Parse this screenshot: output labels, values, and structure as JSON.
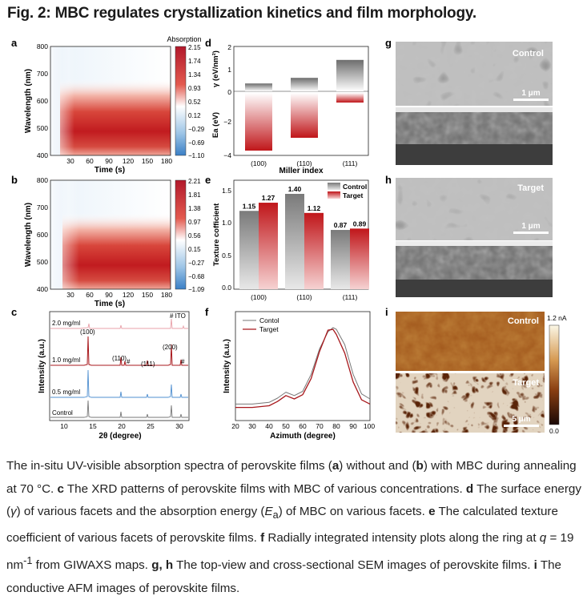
{
  "title": "Fig. 2: MBC regulates crystallization kinetics and film morphology.",
  "panels": {
    "a": {
      "letter": "a",
      "colorbar_title": "Absorption",
      "ylabel": "Wavelength (nm)",
      "xlabel": "Time (s)",
      "yticks": [
        "800",
        "700",
        "600",
        "500",
        "400"
      ],
      "xticks": [
        "30",
        "60",
        "90",
        "120",
        "150",
        "180"
      ],
      "cbar_ticks": [
        "2.15",
        "1.74",
        "1.34",
        "0.93",
        "0.52",
        "0.12",
        "−0.29",
        "−0.69",
        "−1.10"
      ],
      "onset_s": 25
    },
    "b": {
      "letter": "b",
      "ylabel": "Wavelength (nm)",
      "xlabel": "Time (s)",
      "yticks": [
        "800",
        "700",
        "600",
        "500",
        "400"
      ],
      "xticks": [
        "30",
        "60",
        "90",
        "120",
        "150",
        "180"
      ],
      "cbar_ticks": [
        "2.21",
        "1.81",
        "1.38",
        "0.97",
        "0.56",
        "0.15",
        "−0.27",
        "−0.68",
        "−1.09"
      ],
      "onset_s": 35
    },
    "c": {
      "letter": "c",
      "ylabel": "Intensity (a.u.)",
      "xlabel": "2θ (degree)",
      "xticks": [
        "10",
        "15",
        "20",
        "25",
        "30"
      ],
      "traces": [
        "2.0 mg/ml",
        "1.0 mg/ml",
        "0.5 mg/ml",
        "Control"
      ],
      "annotations": [
        "(100)",
        "(110)",
        "#",
        "(111)",
        "(200)",
        "#",
        "# ITO"
      ]
    },
    "d": {
      "letter": "d",
      "ylabel_top": "γ (eV/nm²)",
      "ylabel_bottom": "Ea (eV)",
      "xlabel": "Miller index",
      "yticks": [
        "2",
        "1",
        "0",
        "−2",
        "−4"
      ],
      "categories": [
        "(100)",
        "(110)",
        "(111)"
      ]
    },
    "e": {
      "letter": "e",
      "ylabel": "Texture cofficient",
      "legend": [
        "Control",
        "Target"
      ],
      "yticks": [
        "1.5",
        "1.0",
        "0.5",
        "0.0"
      ],
      "categories": [
        "(100)",
        "(110)",
        "(111)"
      ],
      "labels_control": [
        "1.15",
        "1.40",
        "0.87"
      ],
      "labels_target": [
        "1.27",
        "1.12",
        "0.89"
      ]
    },
    "f": {
      "letter": "f",
      "ylabel": "Intensity (a.u.)",
      "xlabel": "Azimuth (degree)",
      "legend": [
        "Contol",
        "Target"
      ],
      "xticks": [
        "20",
        "30",
        "40",
        "50",
        "60",
        "70",
        "80",
        "90",
        "100"
      ]
    },
    "g": {
      "letter": "g",
      "label": "Control",
      "scale": "1 μm"
    },
    "h": {
      "letter": "h",
      "label": "Target",
      "scale": "1 μm"
    },
    "i": {
      "letter": "i",
      "label_top": "Control",
      "label_bottom": "Target",
      "scale": "5 μm",
      "cbar_max": "1.2 nA",
      "cbar_min": "0.0"
    }
  },
  "chart_data": [
    {
      "panel": "d",
      "type": "bar",
      "categories": [
        "(100)",
        "(110)",
        "(111)"
      ],
      "series": [
        {
          "name": "γ (eV/nm²)",
          "values": [
            0.35,
            0.6,
            1.4
          ]
        },
        {
          "name": "Ea (eV)",
          "values": [
            -3.6,
            -2.8,
            -0.6
          ]
        }
      ],
      "xlabel": "Miller index",
      "ylim": [
        -4,
        2
      ]
    },
    {
      "panel": "e",
      "type": "bar",
      "title": "",
      "categories": [
        "(100)",
        "(110)",
        "(111)"
      ],
      "series": [
        {
          "name": "Control",
          "values": [
            1.15,
            1.4,
            0.87
          ]
        },
        {
          "name": "Target",
          "values": [
            1.27,
            1.12,
            0.89
          ]
        }
      ],
      "ylabel": "Texture cofficient",
      "ylim": [
        0,
        1.6
      ]
    },
    {
      "panel": "f",
      "type": "line",
      "xlabel": "Azimuth (degree)",
      "ylabel": "Intensity (a.u.)",
      "xlim": [
        20,
        100
      ],
      "series": [
        {
          "name": "Contol",
          "x": [
            20,
            30,
            40,
            45,
            50,
            55,
            60,
            65,
            70,
            75,
            78,
            80,
            85,
            90,
            95,
            100
          ],
          "y": [
            0.1,
            0.1,
            0.12,
            0.17,
            0.24,
            0.2,
            0.25,
            0.45,
            0.75,
            0.95,
            1.0,
            0.98,
            0.8,
            0.45,
            0.22,
            0.16
          ]
        },
        {
          "name": "Target",
          "x": [
            20,
            30,
            40,
            45,
            50,
            55,
            60,
            65,
            70,
            75,
            78,
            80,
            85,
            90,
            95,
            100
          ],
          "y": [
            0.06,
            0.06,
            0.08,
            0.13,
            0.2,
            0.16,
            0.21,
            0.4,
            0.72,
            0.97,
            0.98,
            0.92,
            0.7,
            0.36,
            0.15,
            0.1
          ]
        }
      ]
    }
  ],
  "caption": {
    "seg1": "The in-situ UV-visible absorption spectra of perovskite films (",
    "a": "a",
    "seg2": ") without and (",
    "b": "b",
    "seg3": ") with MBC during annealing at 70 °C. ",
    "c": "c",
    "seg4": " The XRD patterns of perovskite films with MBC of various concentrations. ",
    "d": "d",
    "seg5": " The surface energy (",
    "gamma": "γ",
    "seg6": ") of various facets and the absorption energy (",
    "E": "E",
    "Esub": "a",
    "seg7": ") of MBC on various facets. ",
    "e": "e",
    "seg8": " The calculated texture coefficient of various facets of perovskite films. ",
    "f": "f",
    "seg9": " Radially integrated intensity plots along the ring at ",
    "q": "q",
    "seg10": " = 19 nm",
    "sup": "-1",
    "seg11": " from GIWAXS maps. ",
    "gh": "g, h",
    "seg12": " The top-view and cross-sectional SEM images of perovskite films. ",
    "i": "i",
    "seg13": " The conductive AFM images of perovskite films."
  },
  "colors": {
    "red": "#c0161a",
    "red_mid": "#d9534f",
    "blue_light": "#dbe8f5",
    "grey": "#7a7a7a",
    "blue_trace": "#4f8fd0",
    "pink_trace": "#e8a0a8"
  }
}
